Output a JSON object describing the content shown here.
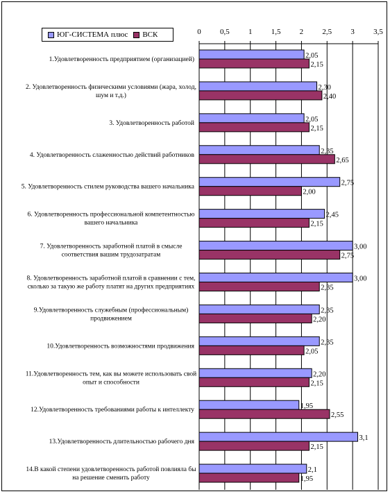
{
  "chart_data": {
    "type": "bar",
    "orientation": "horizontal",
    "legend": "top-left",
    "xlim": [
      0,
      3.5
    ],
    "x_ticks": [
      "0",
      "0,5",
      "1",
      "1,5",
      "2",
      "2,5",
      "3",
      "3,5"
    ],
    "grid": true,
    "categories": [
      [
        "1.Удовлетворенность предприятием (организацией)"
      ],
      [
        "2. Удовлетворенность физическими условиями (жара, холод,",
        "шум и т.д.)"
      ],
      [
        "3. Удовлетворенность работой"
      ],
      [
        "4. Удовлетворенность слаженностью действий работников"
      ],
      [
        "5. Удовлетворенность стилем руководства вашего начальника"
      ],
      [
        "6. Удовлетворенность профессиональной компетентностью",
        "вашего начальника"
      ],
      [
        "7. Удовлетворенность заработной платой в смысле",
        "соответствия вашим трудозатратам"
      ],
      [
        "8. Удовлетворенность заработной платой в сравнении с тем,",
        "сколько за такую же работу платят на других предприятиях"
      ],
      [
        "9.Удовлетворенность служебным (профессиональным)",
        "продвижением"
      ],
      [
        "10.Удовлетворенность возможностями продвижения"
      ],
      [
        "11.Удовлетворенность тем, как вы можете использовать свой",
        "опыт и способности"
      ],
      [
        "12.Удовлетворенность требованиями работы к интеллекту"
      ],
      [
        "13.Удовлетворенность длительностью рабочего дня"
      ],
      [
        "14.В какой степени удовлетворенность работой повлияла бы",
        "на решение сменить работу"
      ]
    ],
    "series": [
      {
        "name": "ЮГ-СИСТЕМА плюс",
        "color": "#9999ff",
        "values": [
          2.05,
          2.3,
          2.05,
          2.35,
          2.75,
          2.45,
          3.0,
          3.0,
          2.35,
          2.35,
          2.2,
          1.95,
          3.1,
          2.1
        ],
        "labels": [
          "2,05",
          "2,30",
          "2,05",
          "2,35",
          "2,75",
          "2,45",
          "3,00",
          "3,00",
          "2,35",
          "2,35",
          "2,20",
          "1,95",
          "3,1",
          "2,1"
        ]
      },
      {
        "name": "ВСК",
        "color": "#993366",
        "values": [
          2.15,
          2.4,
          2.15,
          2.65,
          2.0,
          2.15,
          2.75,
          2.35,
          2.2,
          2.05,
          2.15,
          2.55,
          2.15,
          1.95
        ],
        "labels": [
          "2,15",
          "2,40",
          "2,15",
          "2,65",
          "2,00",
          "2,15",
          "2,75",
          "2,35",
          "2,20",
          "2,05",
          "2,15",
          "2,55",
          "2,15",
          "1,95"
        ]
      }
    ]
  }
}
